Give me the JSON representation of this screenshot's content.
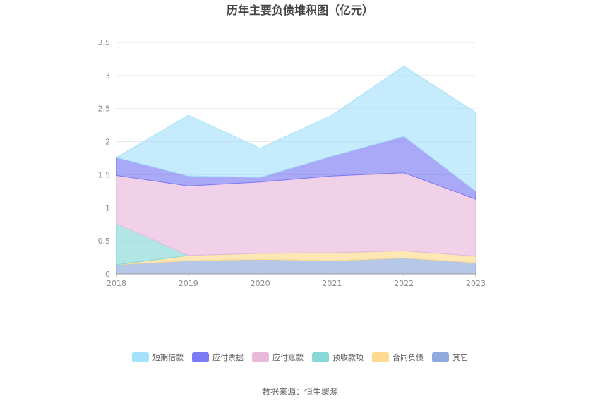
{
  "chart_data": {
    "type": "area",
    "stacked": true,
    "title": "历年主要负债堆积图（亿元）",
    "x": [
      "2018",
      "2019",
      "2020",
      "2021",
      "2022",
      "2023"
    ],
    "ylim": [
      0,
      3.5
    ],
    "yticks": [
      "0",
      "0.5",
      "1",
      "1.5",
      "2",
      "2.5",
      "3",
      "3.5"
    ],
    "grid": true,
    "legend_position": "bottom",
    "series": [
      {
        "name": "其它",
        "color": "#8faadc",
        "values": [
          0.14,
          0.2,
          0.22,
          0.2,
          0.24,
          0.17
        ]
      },
      {
        "name": "合同负债",
        "color": "#ffd98e",
        "values": [
          0.0,
          0.08,
          0.09,
          0.12,
          0.11,
          0.1
        ]
      },
      {
        "name": "预收款项",
        "color": "#88d8d8",
        "values": [
          0.62,
          0.0,
          0.0,
          0.0,
          0.0,
          0.0
        ]
      },
      {
        "name": "应付账款",
        "color": "#e9b9dc",
        "values": [
          0.73,
          1.05,
          1.08,
          1.16,
          1.18,
          0.86
        ]
      },
      {
        "name": "应付票据",
        "color": "#7b7bf5",
        "values": [
          0.27,
          0.15,
          0.07,
          0.3,
          0.55,
          0.12
        ]
      },
      {
        "name": "短期借款",
        "color": "#a6e1fa",
        "values": [
          0.0,
          0.92,
          0.44,
          0.62,
          1.06,
          1.19
        ]
      }
    ],
    "legend_order": [
      "短期借款",
      "应付票据",
      "应付账款",
      "预收款项",
      "合同负债",
      "其它"
    ]
  },
  "source_text": "数据来源：恒生聚源"
}
